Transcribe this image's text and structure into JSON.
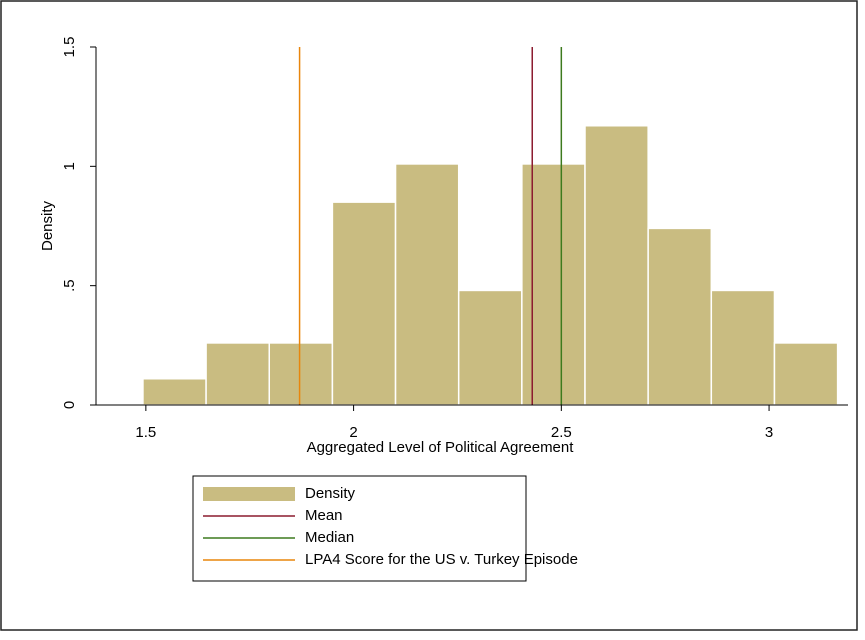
{
  "chart_data": {
    "type": "histogram",
    "x_label": "Aggregated Level of Political Agreement",
    "y_label": "Density",
    "name": "Density",
    "color": "#c9bc81",
    "bins": [
      1.493,
      1.645,
      1.797,
      1.949,
      2.101,
      2.253,
      2.405,
      2.557,
      2.709,
      2.861,
      3.013,
      3.165
    ],
    "values": [
      0.11,
      0.26,
      0.26,
      0.85,
      1.01,
      0.48,
      1.01,
      1.17,
      0.74,
      0.48,
      0.26
    ],
    "lines": [
      {
        "name": "Mean",
        "color": "#8c1b2f",
        "value": 2.43
      },
      {
        "name": "Median",
        "color": "#3d7a1e",
        "value": 2.5
      },
      {
        "name": "LPA4 Score for the US v. Turkey Episode",
        "color": "#e8860c",
        "value": 1.87
      }
    ],
    "xlim": [
      1.38,
      3.19
    ],
    "xticks": [
      1.5,
      2,
      2.5,
      3
    ],
    "ylim": [
      0,
      1.5
    ],
    "yticks": [
      0,
      {
        "value": 0.5,
        "label": ".5"
      },
      1,
      1.5
    ],
    "grid": false
  }
}
